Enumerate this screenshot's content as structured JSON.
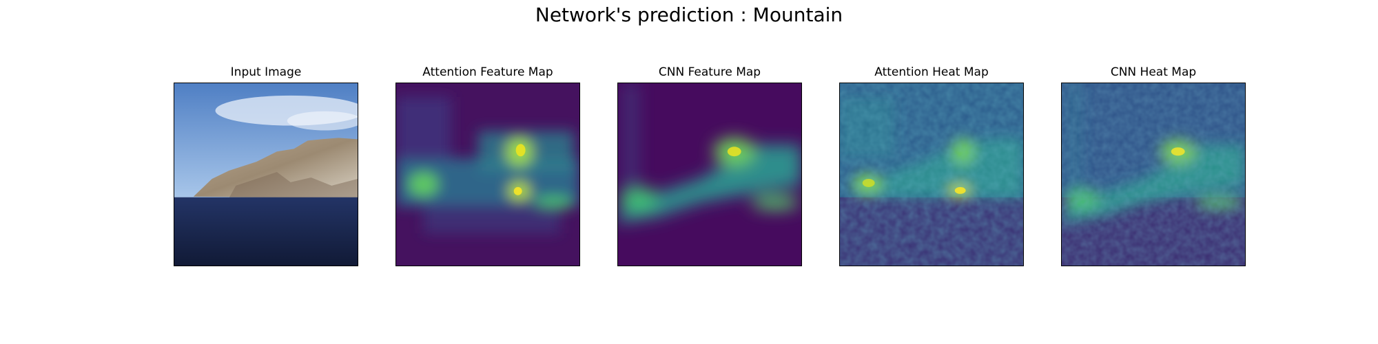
{
  "figure": {
    "suptitle": "Network's prediction : Mountain",
    "panels": [
      {
        "title": "Input Image"
      },
      {
        "title": "Attention Feature Map"
      },
      {
        "title": "CNN Feature Map"
      },
      {
        "title": "Attention Heat Map"
      },
      {
        "title": "CNN Heat Map"
      }
    ]
  },
  "colors": {
    "viridis_low": "#440154",
    "viridis_mid": "#21918c",
    "viridis_high": "#fde725",
    "sky": "#6f9ed8",
    "sea": "#1e2a4f"
  }
}
